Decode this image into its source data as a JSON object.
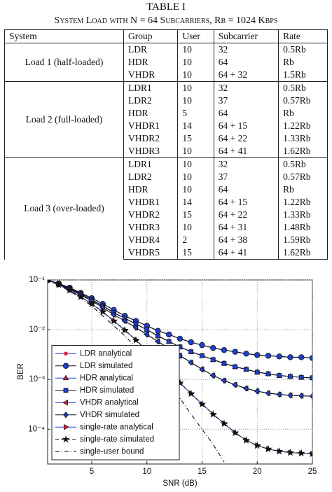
{
  "table": {
    "title": "TABLE I",
    "caption": "System Load with N = 64 Subcarriers, Rb = 1024 Kbps",
    "header": [
      "System",
      "Group",
      "User",
      "Subcarrier",
      "Rate"
    ],
    "groups": [
      {
        "system": "Load 1 (half-loaded)",
        "rows": [
          [
            "LDR",
            "10",
            "32",
            "0.5Rb"
          ],
          [
            "HDR",
            "10",
            "64",
            "Rb"
          ],
          [
            "VHDR",
            "10",
            "64 + 32",
            "1.5Rb"
          ]
        ]
      },
      {
        "system": "Load 2 (full-loaded)",
        "rows": [
          [
            "LDR1",
            "10",
            "32",
            "0.5Rb"
          ],
          [
            "LDR2",
            "10",
            "37",
            "0.57Rb"
          ],
          [
            "HDR",
            "5",
            "64",
            "Rb"
          ],
          [
            "VHDR1",
            "14",
            "64 + 15",
            "1.22Rb"
          ],
          [
            "VHDR2",
            "15",
            "64 + 22",
            "1.33Rb"
          ],
          [
            "VHDR3",
            "10",
            "64 + 41",
            "1.62Rb"
          ]
        ]
      },
      {
        "system": "Load 3 (over-loaded)",
        "rows": [
          [
            "LDR1",
            "10",
            "32",
            "0.5Rb"
          ],
          [
            "LDR2",
            "10",
            "37",
            "0.57Rb"
          ],
          [
            "HDR",
            "10",
            "64",
            "Rb"
          ],
          [
            "VHDR1",
            "14",
            "64 + 15",
            "1.22Rb"
          ],
          [
            "VHDR2",
            "15",
            "64 + 22",
            "1.33Rb"
          ],
          [
            "VHDR3",
            "10",
            "64 + 31",
            "1.48Rb"
          ],
          [
            "VHDR4",
            "2",
            "64 + 38",
            "1.59Rb"
          ],
          [
            "VHDR5",
            "15",
            "64 + 41",
            "1.62Rb"
          ]
        ]
      }
    ]
  },
  "chart_data": {
    "type": "line",
    "x_label": "SNR (dB)",
    "y_label": "BER",
    "log_y": true,
    "grid": true,
    "legend": "lower left",
    "x": [
      1,
      2,
      3,
      4,
      5,
      6,
      7,
      8,
      9,
      10,
      11,
      12,
      13,
      14,
      15,
      16,
      17,
      18,
      19,
      20,
      21,
      22,
      23,
      24,
      25
    ],
    "xlim": [
      1,
      25
    ],
    "xticks": [
      5,
      10,
      15,
      20,
      25
    ],
    "ylim": [
      2e-05,
      0.1
    ],
    "yticks": [
      {
        "value": 0.1,
        "label": "10⁻¹"
      },
      {
        "value": 0.01,
        "label": "10⁻²"
      },
      {
        "value": 0.001,
        "label": "10⁻³"
      },
      {
        "value": 0.0001,
        "label": "10⁻⁴"
      }
    ],
    "series": [
      {
        "name": "LDR analytical",
        "color": "#1f3fd0",
        "marker": "dot",
        "marker_color": "#e0203a",
        "dash": "solid",
        "values": [
          0.1,
          0.085,
          0.07,
          0.055,
          0.043,
          0.033,
          0.025,
          0.019,
          0.015,
          0.012,
          0.0095,
          0.008,
          0.0066,
          0.0056,
          0.0049,
          0.0043,
          0.0039,
          0.0036,
          0.0033,
          0.0031,
          0.003,
          0.0029,
          0.0028,
          0.0028,
          0.0027
        ]
      },
      {
        "name": "LDR simulated",
        "color": "#111111",
        "marker": "circle",
        "marker_color": "#1f3fd0",
        "dash": "solid",
        "values": [
          0.1,
          0.085,
          0.07,
          0.055,
          0.043,
          0.033,
          0.025,
          0.019,
          0.015,
          0.012,
          0.0095,
          0.008,
          0.0066,
          0.0056,
          0.0049,
          0.0043,
          0.0039,
          0.0036,
          0.0033,
          0.0031,
          0.003,
          0.0029,
          0.0028,
          0.0028,
          0.0027
        ]
      },
      {
        "name": "HDR analytical",
        "color": "#1f3fd0",
        "marker": "triangle",
        "marker_color": "#e0203a",
        "dash": "solid",
        "values": [
          0.1,
          0.083,
          0.067,
          0.053,
          0.04,
          0.03,
          0.022,
          0.017,
          0.013,
          0.01,
          0.0075,
          0.0058,
          0.0045,
          0.0036,
          0.003,
          0.0025,
          0.0021,
          0.0018,
          0.0016,
          0.0014,
          0.0013,
          0.0012,
          0.00115,
          0.0011,
          0.00108
        ]
      },
      {
        "name": "HDR simulated",
        "color": "#111111",
        "marker": "square",
        "marker_color": "#1f3fd0",
        "dash": "solid",
        "values": [
          0.1,
          0.083,
          0.067,
          0.053,
          0.04,
          0.03,
          0.022,
          0.017,
          0.013,
          0.01,
          0.0075,
          0.0058,
          0.0045,
          0.0036,
          0.003,
          0.0025,
          0.0021,
          0.0018,
          0.0016,
          0.0014,
          0.0013,
          0.0012,
          0.00115,
          0.0011,
          0.00108
        ]
      },
      {
        "name": "VHDR analytical",
        "color": "#1f3fd0",
        "marker": "triangle-left",
        "marker_color": "#e0203a",
        "dash": "solid",
        "values": [
          0.1,
          0.082,
          0.065,
          0.05,
          0.038,
          0.028,
          0.02,
          0.015,
          0.011,
          0.008,
          0.0058,
          0.0042,
          0.003,
          0.0022,
          0.0016,
          0.0012,
          0.00095,
          0.00078,
          0.00066,
          0.00058,
          0.00053,
          0.0005,
          0.00048,
          0.00047,
          0.00046
        ]
      },
      {
        "name": "VHDR simulated",
        "color": "#111111",
        "marker": "diamond",
        "marker_color": "#1f3fd0",
        "dash": "solid",
        "values": [
          0.1,
          0.082,
          0.065,
          0.05,
          0.038,
          0.028,
          0.02,
          0.015,
          0.011,
          0.008,
          0.0058,
          0.0042,
          0.003,
          0.0022,
          0.0016,
          0.0012,
          0.00095,
          0.00078,
          0.00066,
          0.00058,
          0.00053,
          0.0005,
          0.00048,
          0.00047,
          0.00046
        ]
      },
      {
        "name": "single-rate analytical",
        "color": "#1f3fd0",
        "marker": "triangle-right",
        "marker_color": "#e0203a",
        "dash": "solid",
        "values": [
          0.1,
          0.08,
          0.062,
          0.046,
          0.033,
          0.023,
          0.015,
          0.0098,
          0.0062,
          0.0038,
          0.0023,
          0.0014,
          0.00085,
          0.00052,
          0.00032,
          0.0002,
          0.00013,
          8.5e-05,
          6e-05,
          4.7e-05,
          4e-05,
          3.6e-05,
          3.4e-05,
          3.3e-05,
          3.2e-05
        ]
      },
      {
        "name": "single-rate simulated",
        "color": "#111111",
        "marker": "star",
        "marker_color": "#111111",
        "dash": "dashed",
        "values": [
          0.1,
          0.08,
          0.062,
          0.046,
          0.033,
          0.023,
          0.015,
          0.0098,
          0.0062,
          0.0038,
          0.0023,
          0.0014,
          0.00085,
          0.00052,
          0.00032,
          0.0002,
          0.00013,
          8.5e-05,
          6e-05,
          4.7e-05,
          4e-05,
          3.6e-05,
          3.4e-05,
          3.3e-05,
          3.2e-05
        ]
      },
      {
        "name": "single-user bound",
        "color": "#111111",
        "marker": "none",
        "marker_color": "#111111",
        "dash": "dashdot",
        "values": [
          0.1,
          0.078,
          0.06,
          0.043,
          0.03,
          0.019,
          0.012,
          0.0075,
          0.0045,
          0.0026,
          0.0015,
          0.0008,
          0.00042,
          0.0002,
          0.0001,
          5e-05,
          2.2e-05,
          null,
          null,
          null,
          null,
          null,
          null,
          null,
          null
        ]
      }
    ]
  }
}
